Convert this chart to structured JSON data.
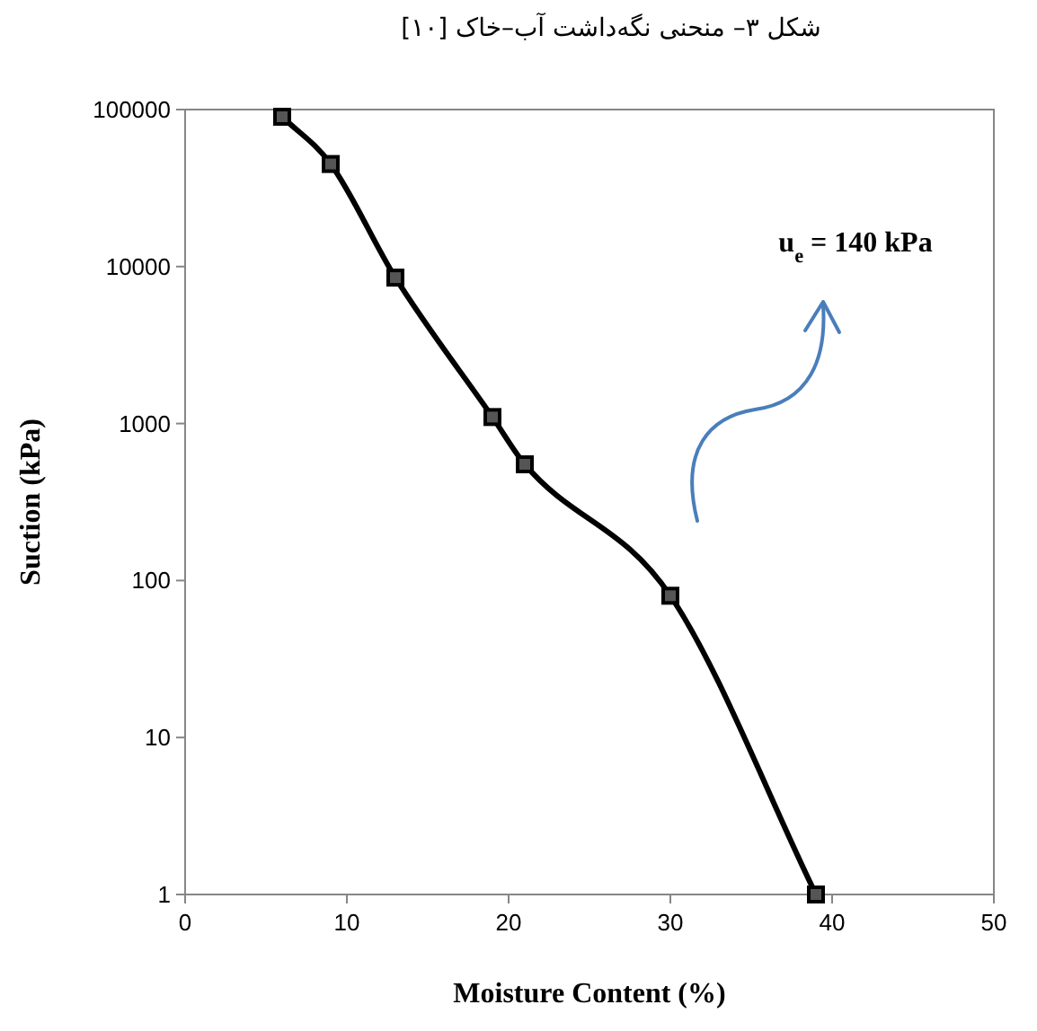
{
  "chart_data": {
    "type": "line",
    "title": "شکل ۳– منحنی نگه‌داشت آب–خاک [۱۰]",
    "xlabel": "Moisture Content (%)",
    "ylabel": "Suction  (kPa)",
    "annotations": [
      "u$_{e}$ = 140 kPa"
    ],
    "x": [
      6,
      9,
      13,
      19,
      21,
      30,
      39
    ],
    "series": [
      {
        "color": "#000000",
        "values": [
          90000,
          45000,
          8500,
          1100,
          550,
          80,
          1
        ]
      }
    ],
    "xlim": [
      0,
      50
    ],
    "ylim": [
      1,
      100000
    ],
    "xticks": [
      0,
      10,
      20,
      30,
      40,
      50
    ],
    "yticks": [
      1,
      10,
      100,
      1000,
      10000,
      100000
    ],
    "log": "y",
    "marker": "square",
    "line_style": "solid"
  }
}
